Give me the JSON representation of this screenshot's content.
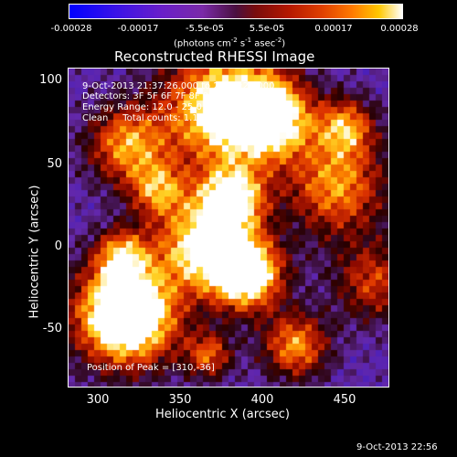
{
  "colorbar": {
    "tick_labels": [
      "-0.00028",
      "-0.00017",
      "-5.5e-05",
      "5.5e-05",
      "0.00017",
      "0.00028"
    ],
    "units_text": "(photons cm",
    "units_exp1": "-2",
    "units_mid": " s",
    "units_exp2": "-1",
    "units_tail": " asec",
    "units_exp3": "-2",
    "units_close": ")"
  },
  "title": "Reconstructed RHESSI Image",
  "info": {
    "time_range": "9-Oct-2013 21:37:26.000 to 21:43:26.000",
    "detectors": "Detectors: 3F 5F 6F 7F 8F 9F, Att 0",
    "energy": "Energy Range: 12.0 - 25.0 keV",
    "clean": "Clean     Total counts: 1.11E+04",
    "peak": "Position of Peak = [310,-36]"
  },
  "axes": {
    "xlabel": "Heliocentric X (arcsec)",
    "ylabel": "Heliocentric Y (arcsec)",
    "xticks": [
      "300",
      "350",
      "400",
      "450"
    ],
    "yticks": [
      "100",
      "50",
      "0",
      "-50"
    ]
  },
  "footer": "9-Oct-2013 22:56",
  "colors": {
    "background": "#000000",
    "text": "#ffffff"
  }
}
